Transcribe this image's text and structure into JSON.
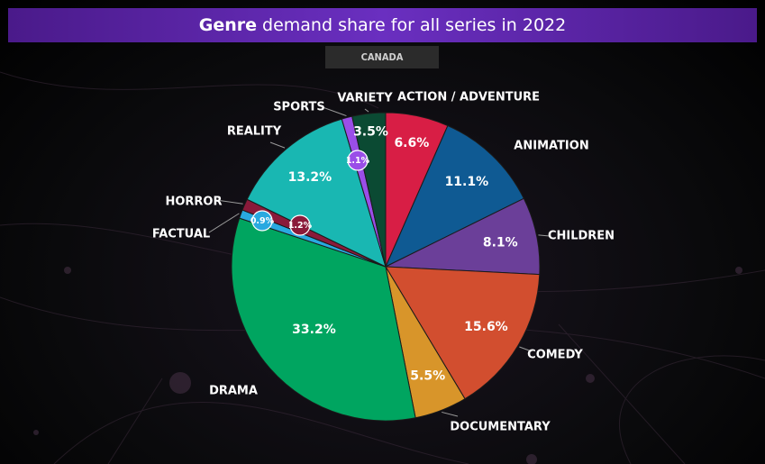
{
  "title": {
    "bold": "Genre",
    "rest": "demand share for all series in 2022"
  },
  "region": "CANADA",
  "colors": {
    "title_bg": "#5a24a8",
    "background": "#000000"
  },
  "chart_data": {
    "type": "pie",
    "title": "Genre demand share for all series in 2022",
    "subtitle": "CANADA",
    "slices": [
      {
        "label": "ACTION / ADVENTURE",
        "value": 6.6,
        "display": "6.6%",
        "color": "#d81e45"
      },
      {
        "label": "ANIMATION",
        "value": 11.1,
        "display": "11.1%",
        "color": "#0f5a93"
      },
      {
        "label": "CHILDREN",
        "value": 8.1,
        "display": "8.1%",
        "color": "#6b3f99"
      },
      {
        "label": "COMEDY",
        "value": 15.6,
        "display": "15.6%",
        "color": "#d24e2f"
      },
      {
        "label": "DOCUMENTARY",
        "value": 5.5,
        "display": "5.5%",
        "color": "#d8952a"
      },
      {
        "label": "DRAMA",
        "value": 33.2,
        "display": "33.2%",
        "color": "#00a560"
      },
      {
        "label": "FACTUAL",
        "value": 0.9,
        "display": "0.9%",
        "color": "#29a9e0"
      },
      {
        "label": "HORROR",
        "value": 1.2,
        "display": "1.2%",
        "color": "#8a1a3a"
      },
      {
        "label": "REALITY",
        "value": 13.2,
        "display": "13.2%",
        "color": "#19b7b2"
      },
      {
        "label": "SPORTS",
        "value": 1.1,
        "display": "1.1%",
        "color": "#9a4ee8"
      },
      {
        "label": "VARIETY",
        "value": 3.5,
        "display": "3.5%",
        "color": "#0b4a33"
      }
    ]
  }
}
